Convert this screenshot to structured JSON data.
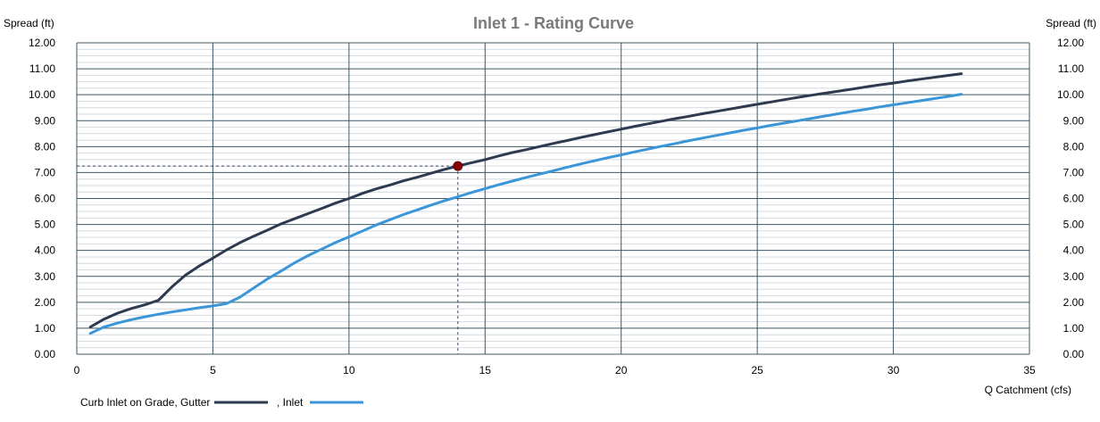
{
  "chart_data": {
    "type": "line",
    "title": "Inlet 1 - Rating Curve",
    "xlabel": "Q Catchment (cfs)",
    "ylabel_left": "Spread (ft)",
    "ylabel_right": "Spread (ft)",
    "xlim": [
      0,
      35
    ],
    "ylim": [
      0,
      12
    ],
    "x_ticks": [
      "0",
      "5",
      "10",
      "15",
      "20",
      "25",
      "30",
      "35"
    ],
    "y_ticks": [
      "0.00",
      "1.00",
      "2.00",
      "3.00",
      "4.00",
      "5.00",
      "6.00",
      "7.00",
      "8.00",
      "9.00",
      "10.00",
      "11.00",
      "12.00"
    ],
    "grid": true,
    "legend_position": "bottom-left",
    "series": [
      {
        "name": "Curb Inlet on Grade, Gutter",
        "color": "#2e3a4f",
        "points": [
          [
            0.5,
            1.05
          ],
          [
            1,
            1.35
          ],
          [
            1.5,
            1.58
          ],
          [
            2,
            1.76
          ],
          [
            2.5,
            1.9
          ],
          [
            3,
            2.08
          ],
          [
            3.5,
            2.6
          ],
          [
            4,
            3.05
          ],
          [
            4.5,
            3.4
          ],
          [
            5,
            3.7
          ],
          [
            5.5,
            4.02
          ],
          [
            6,
            4.3
          ],
          [
            6.5,
            4.55
          ],
          [
            7,
            4.78
          ],
          [
            7.5,
            5.02
          ],
          [
            8,
            5.22
          ],
          [
            8.5,
            5.42
          ],
          [
            9,
            5.62
          ],
          [
            9.5,
            5.82
          ],
          [
            10,
            6.0
          ],
          [
            10.5,
            6.2
          ],
          [
            11,
            6.37
          ],
          [
            11.5,
            6.52
          ],
          [
            12,
            6.68
          ],
          [
            12.5,
            6.82
          ],
          [
            13,
            6.97
          ],
          [
            13.5,
            7.12
          ],
          [
            14,
            7.25
          ],
          [
            14.5,
            7.38
          ],
          [
            15,
            7.5
          ],
          [
            15.5,
            7.64
          ],
          [
            16,
            7.77
          ],
          [
            16.5,
            7.88
          ],
          [
            17,
            8.0
          ],
          [
            17.5,
            8.12
          ],
          [
            18,
            8.23
          ],
          [
            18.5,
            8.35
          ],
          [
            19,
            8.46
          ],
          [
            19.5,
            8.57
          ],
          [
            20,
            8.67
          ],
          [
            20.5,
            8.78
          ],
          [
            21,
            8.88
          ],
          [
            21.5,
            8.98
          ],
          [
            22,
            9.08
          ],
          [
            22.5,
            9.17
          ],
          [
            23,
            9.27
          ],
          [
            23.5,
            9.36
          ],
          [
            24,
            9.45
          ],
          [
            24.5,
            9.54
          ],
          [
            25,
            9.63
          ],
          [
            25.5,
            9.72
          ],
          [
            26,
            9.81
          ],
          [
            26.5,
            9.9
          ],
          [
            27,
            9.98
          ],
          [
            27.5,
            10.06
          ],
          [
            28,
            10.14
          ],
          [
            28.5,
            10.22
          ],
          [
            29,
            10.3
          ],
          [
            29.5,
            10.38
          ],
          [
            30,
            10.45
          ],
          [
            30.5,
            10.53
          ],
          [
            31,
            10.6
          ],
          [
            31.5,
            10.67
          ],
          [
            32,
            10.74
          ],
          [
            32.5,
            10.81
          ]
        ]
      },
      {
        "name": ", Inlet",
        "color": "#3a96d8",
        "points": [
          [
            0.5,
            0.8
          ],
          [
            1,
            1.05
          ],
          [
            1.5,
            1.2
          ],
          [
            2,
            1.33
          ],
          [
            2.5,
            1.44
          ],
          [
            3,
            1.54
          ],
          [
            3.5,
            1.63
          ],
          [
            4,
            1.71
          ],
          [
            4.5,
            1.79
          ],
          [
            5,
            1.86
          ],
          [
            5.5,
            1.95
          ],
          [
            6,
            2.2
          ],
          [
            6.5,
            2.55
          ],
          [
            7,
            2.9
          ],
          [
            7.5,
            3.2
          ],
          [
            8,
            3.52
          ],
          [
            8.5,
            3.8
          ],
          [
            9,
            4.05
          ],
          [
            9.5,
            4.3
          ],
          [
            10,
            4.52
          ],
          [
            10.5,
            4.75
          ],
          [
            11,
            4.98
          ],
          [
            11.5,
            5.18
          ],
          [
            12,
            5.38
          ],
          [
            12.5,
            5.56
          ],
          [
            13,
            5.74
          ],
          [
            13.5,
            5.91
          ],
          [
            14,
            6.07
          ],
          [
            14.5,
            6.23
          ],
          [
            15,
            6.38
          ],
          [
            15.5,
            6.53
          ],
          [
            16,
            6.67
          ],
          [
            16.5,
            6.81
          ],
          [
            17,
            6.94
          ],
          [
            17.5,
            7.07
          ],
          [
            18,
            7.2
          ],
          [
            18.5,
            7.33
          ],
          [
            19,
            7.45
          ],
          [
            19.5,
            7.57
          ],
          [
            20,
            7.68
          ],
          [
            20.5,
            7.8
          ],
          [
            21,
            7.91
          ],
          [
            21.5,
            8.02
          ],
          [
            22,
            8.12
          ],
          [
            22.5,
            8.23
          ],
          [
            23,
            8.33
          ],
          [
            23.5,
            8.43
          ],
          [
            24,
            8.53
          ],
          [
            24.5,
            8.63
          ],
          [
            25,
            8.72
          ],
          [
            25.5,
            8.82
          ],
          [
            26,
            8.91
          ],
          [
            26.5,
            9.0
          ],
          [
            27,
            9.09
          ],
          [
            27.5,
            9.18
          ],
          [
            28,
            9.27
          ],
          [
            28.5,
            9.36
          ],
          [
            29,
            9.44
          ],
          [
            29.5,
            9.53
          ],
          [
            30,
            9.61
          ],
          [
            30.5,
            9.69
          ],
          [
            31,
            9.77
          ],
          [
            31.5,
            9.85
          ],
          [
            32,
            9.93
          ],
          [
            32.5,
            10.02
          ]
        ]
      }
    ],
    "marker": {
      "x": 14,
      "y": 7.25,
      "color": "#8b0000"
    }
  }
}
